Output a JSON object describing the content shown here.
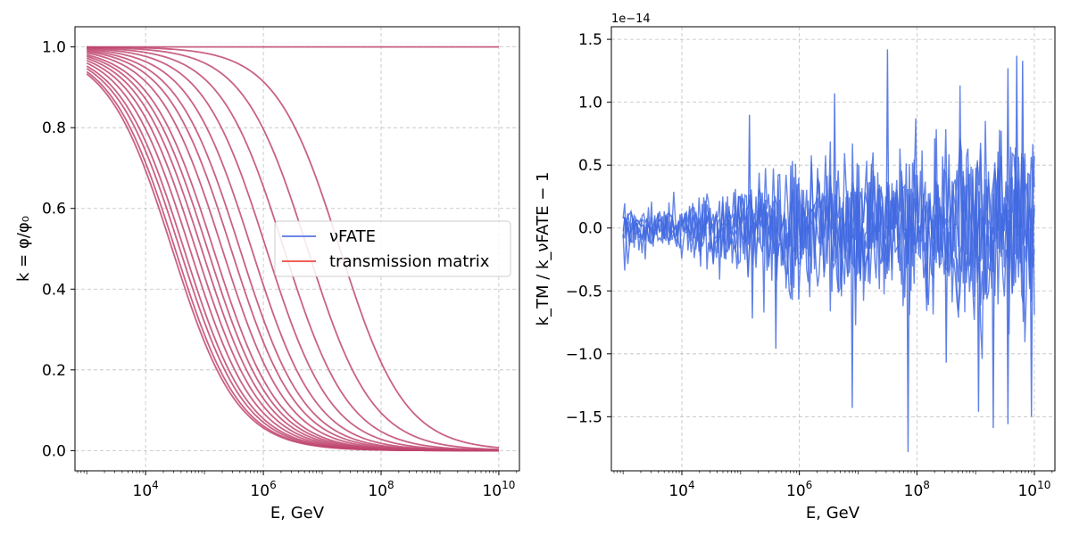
{
  "chart_data": [
    {
      "type": "line",
      "xlabel": "E, GeV",
      "ylabel": "k = φ/φ₀",
      "xscale": "log",
      "xlim_exp": [
        2.8,
        10.35
      ],
      "ylim": [
        -0.05,
        1.05
      ],
      "x_ticks": [
        {
          "exp": 4,
          "label_base": "10",
          "label_exp": "4"
        },
        {
          "exp": 6,
          "label_base": "10",
          "label_exp": "6"
        },
        {
          "exp": 8,
          "label_base": "10",
          "label_exp": "8"
        },
        {
          "exp": 10,
          "label_base": "10",
          "label_exp": "10"
        }
      ],
      "y_ticks": [
        {
          "value": 0.0,
          "label": "0.0"
        },
        {
          "value": 0.2,
          "label": "0.2"
        },
        {
          "value": 0.4,
          "label": "0.4"
        },
        {
          "value": 0.6,
          "label": "0.6"
        },
        {
          "value": 0.8,
          "label": "0.8"
        },
        {
          "value": 1.0,
          "label": "1.0"
        }
      ],
      "grid": true,
      "legend": {
        "placement": "center-right",
        "entries": [
          {
            "label": "νFATE",
            "color": "#6f87e6"
          },
          {
            "label": "transmission matrix",
            "color": "#f0605a"
          }
        ]
      },
      "line_color": "#c0466f",
      "curve_midpoints_log10E": [
        4.45,
        4.5,
        4.58,
        4.65,
        4.75,
        4.85,
        4.95,
        5.05,
        5.15,
        5.3,
        5.45,
        5.6,
        5.8,
        6.05,
        6.35,
        6.75,
        7.3
      ],
      "curve_width": 0.55,
      "flat_series": {
        "value": 1.0,
        "x_range_exp": [
          3,
          10
        ]
      },
      "x_range_exp": [
        3,
        10
      ]
    },
    {
      "type": "line",
      "xlabel": "E, GeV",
      "ylabel": "k_TM / k_νFATE − 1",
      "xscale": "log",
      "xlim_exp": [
        2.8,
        10.35
      ],
      "ylim": [
        -1.93,
        1.6
      ],
      "offset_label": "1e−14",
      "x_ticks": [
        {
          "exp": 4,
          "label_base": "10",
          "label_exp": "4"
        },
        {
          "exp": 6,
          "label_base": "10",
          "label_exp": "6"
        },
        {
          "exp": 8,
          "label_base": "10",
          "label_exp": "8"
        },
        {
          "exp": 10,
          "label_base": "10",
          "label_exp": "10"
        }
      ],
      "y_ticks": [
        {
          "value": -1.5,
          "label": "−1.5"
        },
        {
          "value": -1.0,
          "label": "−1.0"
        },
        {
          "value": -0.5,
          "label": "−0.5"
        },
        {
          "value": 0.0,
          "label": "0.0"
        },
        {
          "value": 0.5,
          "label": "0.5"
        },
        {
          "value": 1.0,
          "label": "1.0"
        },
        {
          "value": 1.5,
          "label": "1.5"
        }
      ],
      "grid": true,
      "line_color": "#4169e1",
      "x_range_exp": [
        3,
        10
      ],
      "noise_envelope": [
        {
          "exp": 3.0,
          "amp": 0.2
        },
        {
          "exp": 4.0,
          "amp": 0.22
        },
        {
          "exp": 5.0,
          "amp": 0.4
        },
        {
          "exp": 6.0,
          "amp": 0.55
        },
        {
          "exp": 7.0,
          "amp": 0.65
        },
        {
          "exp": 8.0,
          "amp": 0.75
        },
        {
          "exp": 9.0,
          "amp": 0.85
        },
        {
          "exp": 10.0,
          "amp": 0.9
        }
      ],
      "spikes": [
        {
          "exp": 5.15,
          "value": 0.9
        },
        {
          "exp": 5.2,
          "value": -0.72
        },
        {
          "exp": 5.6,
          "value": -0.96
        },
        {
          "exp": 6.9,
          "value": -1.43
        },
        {
          "exp": 6.6,
          "value": 1.07
        },
        {
          "exp": 7.5,
          "value": 1.42
        },
        {
          "exp": 7.85,
          "value": -1.78
        },
        {
          "exp": 8.5,
          "value": -1.07
        },
        {
          "exp": 9.05,
          "value": -1.46
        },
        {
          "exp": 9.3,
          "value": -1.59
        },
        {
          "exp": 9.55,
          "value": -1.56
        },
        {
          "exp": 9.55,
          "value": 1.27
        },
        {
          "exp": 9.7,
          "value": 1.37
        },
        {
          "exp": 9.95,
          "value": -1.5
        },
        {
          "exp": 9.8,
          "value": 1.33
        }
      ]
    }
  ]
}
